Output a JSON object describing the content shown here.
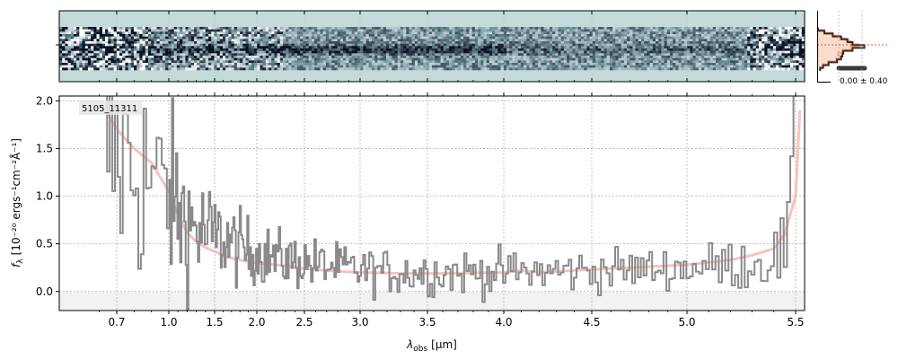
{
  "chart_data": [
    {
      "panel": "2d-spectrum",
      "type": "heatmap",
      "xlim": [
        0.55,
        5.56
      ],
      "description_rows": "cross-dispersion rows of the 2D spectrum; grayscale-blue noise with a faint horizontal trace",
      "colors": {
        "background": "#c5dada",
        "dark": "#0a1020",
        "mid": "#7f9fa8",
        "light": "#ffffff"
      }
    },
    {
      "panel": "profile",
      "type": "line",
      "annotation": "0.00 ± 0.40",
      "colors": {
        "model": "#f3a68a",
        "model_fill": "#fadccd",
        "data": "#3a2a22"
      },
      "profile_y": [
        0.0,
        0.15,
        0.35,
        0.55,
        0.7,
        0.82,
        1.0,
        0.82,
        0.6,
        0.5,
        0.55,
        0.45,
        0.25,
        0.12,
        0.05
      ]
    },
    {
      "panel": "1d-spectrum",
      "type": "line",
      "label": "5105_11311",
      "xlabel_main": "λ",
      "xlabel_sub": "obs",
      "xlabel_unit": "[μm]",
      "ylabel_main": "f",
      "ylabel_sub": "λ",
      "ylabel_unit": "[10⁻²⁰ ergs⁻¹cm⁻²Å⁻¹]",
      "xlim": [
        0.55,
        5.56
      ],
      "ylim": [
        -0.2,
        2.05
      ],
      "x_ticks": [
        0.7,
        1.0,
        1.5,
        2.0,
        2.5,
        3.0,
        3.5,
        4.0,
        4.5,
        5.0,
        5.5
      ],
      "x_tick_labels": [
        "0.7",
        "1.0",
        "1.5",
        "2.0",
        "2.5",
        "3.0",
        "3.5",
        "4.0",
        "4.5",
        "5.0",
        "5.5"
      ],
      "y_ticks": [
        0.0,
        0.5,
        1.0,
        1.5,
        2.0
      ],
      "y_tick_labels": [
        "0.0",
        "0.5",
        "1.0",
        "1.5",
        "2.0"
      ],
      "grid": true,
      "colors": {
        "data": "#8a8a8a",
        "model": "#f7b7b0",
        "grid": "#b0b0b0",
        "zero_band": "#f2f2f2"
      },
      "model_curve": {
        "x": [
          0.6,
          0.65,
          0.7,
          0.75,
          0.8,
          0.9,
          1.0,
          1.1,
          1.2,
          1.3,
          1.4,
          1.5,
          1.6,
          1.7,
          1.8,
          2.0,
          2.2,
          2.5,
          2.8,
          3.0,
          3.3,
          3.6,
          4.0,
          4.1,
          4.2,
          4.5,
          4.8,
          5.0,
          5.2,
          5.3,
          5.4,
          5.45,
          5.5,
          5.52
        ],
        "y": [
          1.95,
          1.85,
          1.7,
          1.6,
          1.5,
          1.35,
          1.05,
          0.8,
          0.62,
          0.52,
          0.46,
          0.42,
          0.38,
          0.35,
          0.33,
          0.3,
          0.28,
          0.24,
          0.21,
          0.2,
          0.19,
          0.19,
          0.2,
          0.22,
          0.2,
          0.23,
          0.26,
          0.28,
          0.33,
          0.38,
          0.45,
          0.6,
          1.0,
          1.9
        ]
      },
      "data_anchors": {
        "x": [
          0.6,
          0.7,
          0.8,
          0.9,
          1.0,
          1.1,
          1.2,
          1.4,
          1.6,
          1.8,
          2.0,
          2.2,
          2.5,
          2.8,
          3.0,
          3.3,
          3.6,
          4.0,
          4.5,
          5.0,
          5.3,
          5.45,
          5.5
        ],
        "y": [
          1.6,
          1.4,
          1.3,
          1.15,
          1.0,
          0.85,
          0.7,
          0.6,
          0.55,
          0.45,
          0.4,
          0.35,
          0.3,
          0.25,
          0.22,
          0.2,
          0.2,
          0.2,
          0.22,
          0.25,
          0.3,
          0.4,
          1.9
        ]
      },
      "data_noise": {
        "x": [
          0.6,
          0.8,
          1.0,
          1.5,
          2.0,
          3.0,
          4.0,
          5.0,
          5.4,
          5.5
        ],
        "sigma": [
          1.4,
          1.2,
          0.9,
          0.45,
          0.3,
          0.22,
          0.22,
          0.2,
          0.3,
          0.5
        ]
      }
    }
  ]
}
